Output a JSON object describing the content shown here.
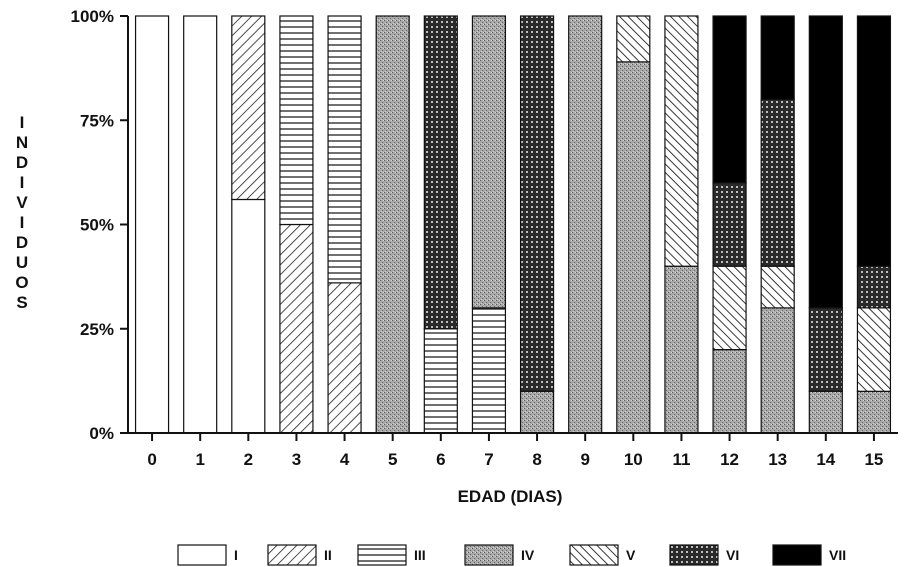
{
  "chart_data": {
    "type": "bar",
    "stacked": true,
    "title": "",
    "xlabel": "EDAD (DIAS)",
    "ylabel": "INDIVIDUOS",
    "ylabel_letters": [
      "I",
      "N",
      "D",
      "I",
      "V",
      "I",
      "D",
      "U",
      "O",
      "S"
    ],
    "yticks": [
      "0%",
      "25%",
      "50%",
      "75%",
      "100%"
    ],
    "ylim": [
      0,
      100
    ],
    "grid": false,
    "legend_position": "bottom",
    "categories": [
      "0",
      "1",
      "2",
      "3",
      "4",
      "5",
      "6",
      "7",
      "8",
      "9",
      "10",
      "11",
      "12",
      "13",
      "14",
      "15"
    ],
    "series": [
      {
        "name": "I",
        "pattern": "blank",
        "values": [
          100,
          100,
          56,
          0,
          0,
          0,
          0,
          0,
          0,
          0,
          0,
          0,
          0,
          0,
          0,
          0
        ]
      },
      {
        "name": "II",
        "pattern": "diagonal",
        "values": [
          0,
          0,
          44,
          50,
          36,
          0,
          0,
          0,
          0,
          0,
          0,
          0,
          0,
          0,
          0,
          0
        ]
      },
      {
        "name": "III",
        "pattern": "horizontal",
        "values": [
          0,
          0,
          0,
          50,
          64,
          0,
          25,
          30,
          0,
          0,
          0,
          0,
          0,
          0,
          0,
          0
        ]
      },
      {
        "name": "IV",
        "pattern": "stipple",
        "values": [
          0,
          0,
          0,
          0,
          0,
          100,
          0,
          70,
          10,
          100,
          89,
          40,
          20,
          30,
          10,
          10
        ]
      },
      {
        "name": "V",
        "pattern": "antidiagonal",
        "values": [
          0,
          0,
          0,
          0,
          0,
          0,
          0,
          0,
          0,
          0,
          11,
          60,
          20,
          10,
          0,
          20
        ]
      },
      {
        "name": "VI",
        "pattern": "crosshatch",
        "values": [
          0,
          0,
          0,
          0,
          0,
          0,
          75,
          0,
          90,
          0,
          0,
          0,
          20,
          40,
          20,
          10
        ]
      },
      {
        "name": "VII",
        "pattern": "solid",
        "values": [
          0,
          0,
          0,
          0,
          0,
          0,
          0,
          0,
          0,
          0,
          0,
          0,
          40,
          20,
          70,
          60
        ]
      }
    ]
  }
}
